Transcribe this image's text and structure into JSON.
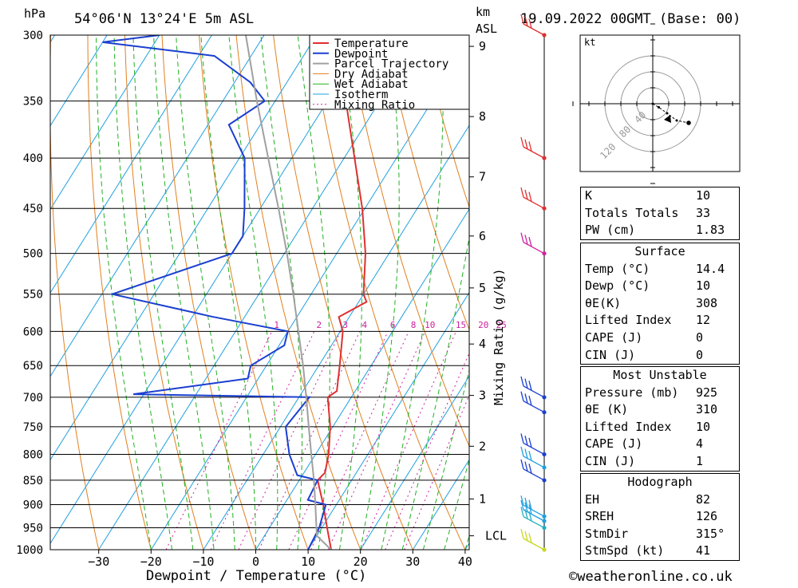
{
  "header": {
    "location": "54°06'N  13°24'E  5m  ASL",
    "datetime": "19.09.2022  00GMT  (Base: 00)",
    "pressure_unit": "hPa",
    "height_unit_km": "km",
    "height_unit_asl": "ASL"
  },
  "footer": {
    "credit": "©weatheronline.co.uk"
  },
  "colors": {
    "temperature": "#e03030",
    "dewpoint": "#1a3fd0",
    "parcel": "#a0a0a0",
    "dry_adiabat": "#e08020",
    "wet_adiabat": "#20b020",
    "isotherm": "#20a0e0",
    "mixing_ratio": "#d020a0"
  },
  "chart_data": {
    "type": "line",
    "title": "54°06'N  13°24'E  5m  ASL",
    "xlabel": "Dewpoint / Temperature (°C)",
    "ylabel": "hPa",
    "xlim": [
      -40,
      40
    ],
    "ylim": [
      1000,
      300
    ],
    "y_scale": "log",
    "skew_per_log10p": 117.8,
    "grid": true,
    "legend_position": "top-right",
    "x_ticks": [
      "-30",
      "-20",
      "-10",
      "0",
      "10",
      "20",
      "30",
      "40"
    ],
    "y_ticks": [
      "300",
      "350",
      "400",
      "450",
      "500",
      "550",
      "600",
      "650",
      "700",
      "750",
      "800",
      "850",
      "900",
      "950",
      "1000"
    ],
    "height_ticks": [
      {
        "label": "9",
        "p": 308
      },
      {
        "label": "8",
        "p": 363
      },
      {
        "label": "7",
        "p": 418
      },
      {
        "label": "6",
        "p": 480
      },
      {
        "label": "5",
        "p": 542
      },
      {
        "label": "4",
        "p": 618
      },
      {
        "label": "3",
        "p": 697
      },
      {
        "label": "2",
        "p": 785
      },
      {
        "label": "1",
        "p": 888
      },
      {
        "label": "LCL",
        "p": 968
      }
    ],
    "right_axis_label": "Mixing Ratio (g/kg)",
    "mixing_ratio_labels": [
      "1",
      "2",
      "3",
      "4",
      "6",
      "8",
      "10",
      "15",
      "20",
      "25"
    ],
    "legend": [
      "Temperature",
      "Dewpoint",
      "Parcel Trajectory",
      "Dry Adiabat",
      "Wet Adiabat",
      "Isotherm",
      "Mixing Ratio"
    ],
    "series": [
      {
        "name": "Temperature",
        "points": [
          [
            1000,
            14.4
          ],
          [
            950,
            11.0
          ],
          [
            900,
            7.5
          ],
          [
            850,
            3.5
          ],
          [
            835,
            4.0
          ],
          [
            800,
            2.5
          ],
          [
            750,
            -0.5
          ],
          [
            700,
            -4.5
          ],
          [
            690,
            -3.5
          ],
          [
            650,
            -6.0
          ],
          [
            600,
            -9.5
          ],
          [
            580,
            -12.0
          ],
          [
            560,
            -8.5
          ],
          [
            550,
            -10.0
          ],
          [
            500,
            -14.5
          ],
          [
            450,
            -20.5
          ],
          [
            400,
            -28.0
          ],
          [
            350,
            -36.5
          ],
          [
            300,
            -45.5
          ]
        ]
      },
      {
        "name": "Dewpoint",
        "points": [
          [
            1000,
            10.0
          ],
          [
            950,
            9.5
          ],
          [
            900,
            8.0
          ],
          [
            890,
            4.0
          ],
          [
            850,
            3.5
          ],
          [
            840,
            -1.0
          ],
          [
            800,
            -5.0
          ],
          [
            750,
            -9.0
          ],
          [
            700,
            -8.0
          ],
          [
            695,
            -42.0
          ],
          [
            670,
            -22.0
          ],
          [
            650,
            -23.0
          ],
          [
            620,
            -19.0
          ],
          [
            600,
            -20.0
          ],
          [
            580,
            -36.0
          ],
          [
            550,
            -58.0
          ],
          [
            500,
            -40.0
          ],
          [
            480,
            -40.0
          ],
          [
            450,
            -43.0
          ],
          [
            400,
            -49.0
          ],
          [
            370,
            -56.0
          ],
          [
            350,
            -52.0
          ],
          [
            335,
            -57.0
          ],
          [
            315,
            -67.0
          ],
          [
            305,
            -90.0
          ],
          [
            300,
            -80.0
          ]
        ]
      },
      {
        "name": "Parcel Trajectory",
        "points": [
          [
            1000,
            14.4
          ],
          [
            968,
            10.0
          ],
          [
            900,
            6.0
          ],
          [
            850,
            2.8
          ],
          [
            800,
            -0.8
          ],
          [
            750,
            -4.6
          ],
          [
            700,
            -8.6
          ],
          [
            650,
            -13.0
          ],
          [
            600,
            -18.0
          ],
          [
            550,
            -23.4
          ],
          [
            500,
            -29.5
          ],
          [
            450,
            -36.5
          ],
          [
            400,
            -44.5
          ],
          [
            350,
            -53.5
          ],
          [
            300,
            -63.5
          ]
        ]
      }
    ]
  },
  "hodograph": {
    "unit_label": "kt",
    "ring_labels": [
      "40",
      "80",
      "120"
    ],
    "points": [
      [
        0,
        0
      ],
      [
        5,
        -3
      ],
      [
        12,
        -8
      ],
      [
        20,
        -14
      ],
      [
        30,
        -16
      ]
    ]
  },
  "winds": [
    {
      "p": 300,
      "color": "#e03030"
    },
    {
      "p": 400,
      "color": "#e03030"
    },
    {
      "p": 450,
      "color": "#e03030"
    },
    {
      "p": 500,
      "color": "#d020a0"
    },
    {
      "p": 700,
      "color": "#1a3fd0"
    },
    {
      "p": 725,
      "color": "#1a3fd0"
    },
    {
      "p": 800,
      "color": "#1a3fd0"
    },
    {
      "p": 825,
      "color": "#20a0e0"
    },
    {
      "p": 850,
      "color": "#1a3fd0"
    },
    {
      "p": 925,
      "color": "#20a0e0"
    },
    {
      "p": 935,
      "color": "#20a0e0"
    },
    {
      "p": 950,
      "color": "#20b0c0"
    },
    {
      "p": 1000,
      "color": "#c8d820"
    }
  ],
  "indices": [
    {
      "label": "K",
      "value": "10"
    },
    {
      "label": "Totals Totals",
      "value": "33"
    },
    {
      "label": "PW (cm)",
      "value": "1.83"
    }
  ],
  "surface": {
    "title": "Surface",
    "rows": [
      {
        "label": "Temp (°C)",
        "value": "14.4"
      },
      {
        "label": "Dewp (°C)",
        "value": "10"
      },
      {
        "label": "θE(K)",
        "value": "308"
      },
      {
        "label": "Lifted Index",
        "value": "12"
      },
      {
        "label": "CAPE (J)",
        "value": "0"
      },
      {
        "label": "CIN (J)",
        "value": "0"
      }
    ]
  },
  "most_unstable": {
    "title": "Most Unstable",
    "rows": [
      {
        "label": "Pressure (mb)",
        "value": "925"
      },
      {
        "label": "θE (K)",
        "value": "310"
      },
      {
        "label": "Lifted Index",
        "value": "10"
      },
      {
        "label": "CAPE (J)",
        "value": "4"
      },
      {
        "label": "CIN (J)",
        "value": "1"
      }
    ]
  },
  "hodograph_table": {
    "title": "Hodograph",
    "rows": [
      {
        "label": "EH",
        "value": "82"
      },
      {
        "label": "SREH",
        "value": "126"
      },
      {
        "label": "StmDir",
        "value": "315°"
      },
      {
        "label": "StmSpd (kt)",
        "value": "41"
      }
    ]
  }
}
